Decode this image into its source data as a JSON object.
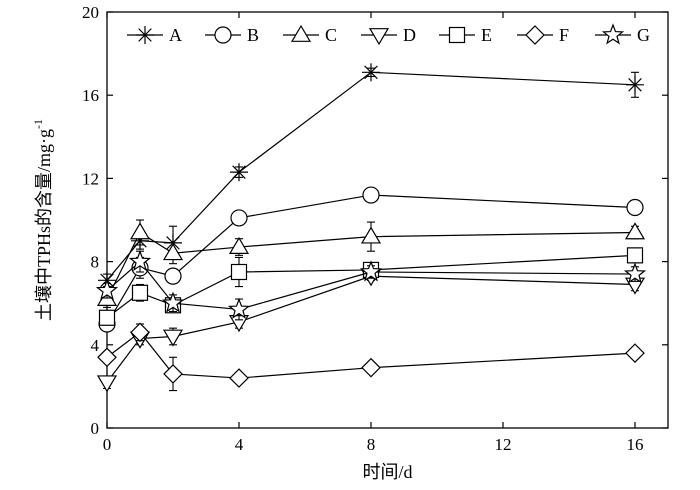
{
  "chart_data": {
    "type": "line",
    "xlabel": "时间/d",
    "ylabel": "土壤中TPHs的含量/mg·g",
    "ylabel_sup": "-1",
    "xlim": [
      0,
      17
    ],
    "ylim": [
      0,
      20
    ],
    "xticks": [
      0,
      4,
      8,
      12,
      16
    ],
    "yticks": [
      0,
      4,
      8,
      12,
      16,
      20
    ],
    "grid": false,
    "legend_position": "top",
    "x": [
      0,
      1,
      2,
      4,
      8,
      16
    ],
    "series": [
      {
        "name": "A",
        "marker": "asterisk",
        "values": [
          7.1,
          9.0,
          8.9,
          12.3,
          17.1,
          16.5
        ],
        "errors": [
          0.3,
          0.4,
          0.8,
          0.25,
          0.2,
          0.6
        ]
      },
      {
        "name": "B",
        "marker": "circle",
        "values": [
          5.0,
          7.7,
          7.3,
          10.1,
          11.2,
          10.6
        ],
        "errors": [
          0.3,
          0.5,
          0.3,
          0.2,
          0.3,
          0.25
        ]
      },
      {
        "name": "C",
        "marker": "triangle-up",
        "values": [
          6.2,
          9.4,
          8.4,
          8.7,
          9.2,
          9.4
        ],
        "errors": [
          0.4,
          0.6,
          0.5,
          0.4,
          0.7,
          0.3
        ]
      },
      {
        "name": "D",
        "marker": "triangle-down",
        "values": [
          2.2,
          4.3,
          4.4,
          5.1,
          7.3,
          6.9
        ],
        "errors": [
          0.3,
          0.3,
          0.4,
          0.3,
          0.2,
          0.3
        ]
      },
      {
        "name": "E",
        "marker": "square",
        "values": [
          5.3,
          6.5,
          5.9,
          7.5,
          7.6,
          8.3
        ],
        "errors": [
          0.3,
          0.4,
          0.3,
          0.7,
          0.3,
          0.35
        ]
      },
      {
        "name": "F",
        "marker": "diamond",
        "values": [
          3.4,
          4.6,
          2.6,
          2.4,
          2.9,
          3.6
        ],
        "errors": [
          0.25,
          0.4,
          0.8,
          0.25,
          0.25,
          0.2
        ]
      },
      {
        "name": "G",
        "marker": "star",
        "values": [
          6.6,
          8.0,
          6.0,
          5.7,
          7.5,
          7.4
        ],
        "errors": [
          0.35,
          0.5,
          0.4,
          0.5,
          0.3,
          0.35
        ]
      }
    ]
  }
}
